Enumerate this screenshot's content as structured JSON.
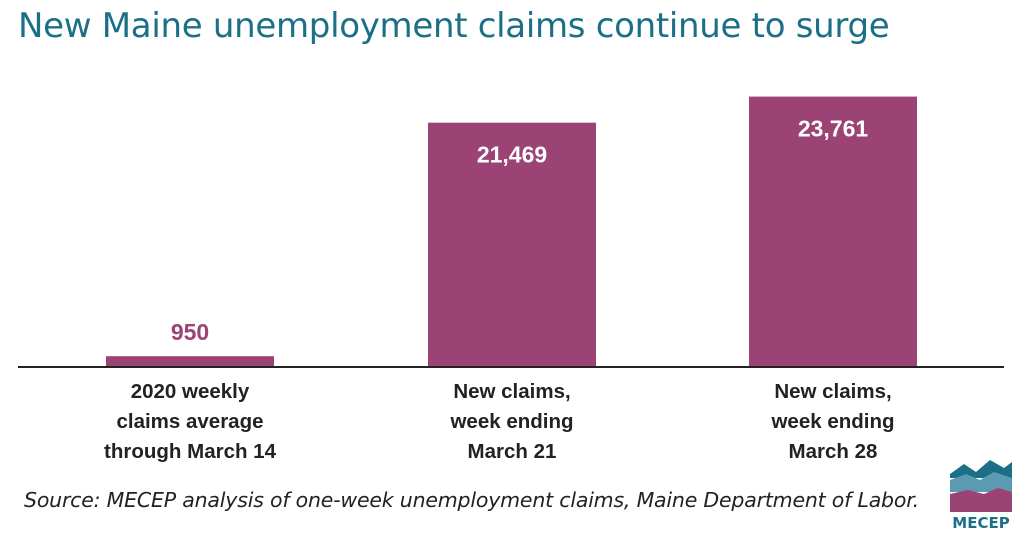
{
  "chart_data": {
    "type": "bar",
    "title": "New Maine unemployment claims continue to surge",
    "categories": [
      [
        "2020 weekly",
        "claims average",
        "through March 14"
      ],
      [
        "New claims,",
        "week ending",
        "March 21"
      ],
      [
        "New claims,",
        "week ending",
        "March 28"
      ]
    ],
    "values": [
      950,
      21469,
      23761
    ],
    "value_labels": [
      "950",
      "21,469",
      "23,761"
    ],
    "bar_color": "#9b4374",
    "inside_label_color": "#ffffff",
    "outside_label_color": "#9b4374",
    "ylim": [
      0,
      25000
    ],
    "grid": false,
    "xlabel": "",
    "ylabel": ""
  },
  "source": "Source: MECEP analysis of one-week unemployment claims, Maine Department of Labor.",
  "logo": {
    "text": "MECEP",
    "icon": "mountain-waves-logo"
  },
  "colors": {
    "title": "#1b6f87",
    "axis": "#222222"
  }
}
